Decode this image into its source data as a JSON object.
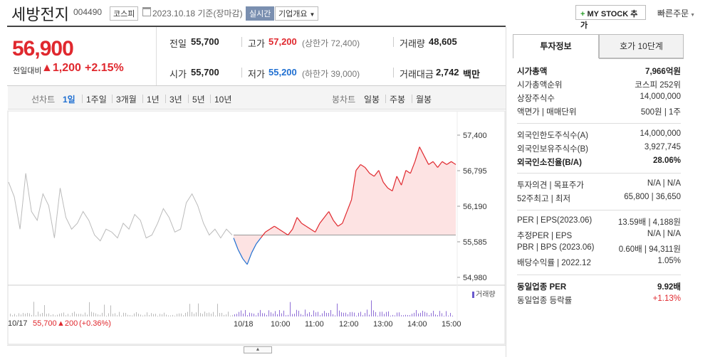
{
  "header": {
    "name": "세방전지",
    "code": "004490",
    "market": "코스피",
    "date": "2023.10.18 기준(장마감)",
    "live": "실시간",
    "company": "기업개요",
    "mystock": "MY STOCK 추가",
    "quick": "빠른주문"
  },
  "price": {
    "current": "56,900",
    "diff_label": "전일대비",
    "diff_value": "1,200",
    "diff_pct": "+2.15%"
  },
  "info": {
    "prev_label": "전일",
    "prev": "55,700",
    "high_label": "고가",
    "high": "57,200",
    "upper": "(상한가 72,400)",
    "volume_label": "거래량",
    "volume": "48,605",
    "open_label": "시가",
    "open": "55,700",
    "low_label": "저가",
    "low": "55,200",
    "lower": "(하한가 39,000)",
    "amount_label": "거래대금",
    "amount": "2,742",
    "amount_unit": "백만"
  },
  "periods": {
    "line_label": "선차트",
    "line_items": [
      "1일",
      "1주일",
      "3개월",
      "1년",
      "3년",
      "5년",
      "10년"
    ],
    "selected": "1일",
    "candle_label": "봉차트",
    "candle_items": [
      "일봉",
      "주봉",
      "월봉"
    ]
  },
  "chart_data": {
    "type": "line",
    "y_ticks": [
      "57,400",
      "56,795",
      "56,190",
      "55,585",
      "54,980"
    ],
    "ylim": [
      54980,
      57400
    ],
    "reference_price": 55700,
    "x_ticks": [
      "10/17",
      "10/18",
      "10:00",
      "11:00",
      "12:00",
      "13:00",
      "14:00",
      "15:00"
    ],
    "prev_day_summary": {
      "date": "10/17",
      "price": "55,700",
      "change": "▲200",
      "pct": "(+0.36%)"
    },
    "volume_legend": "거래량",
    "prev_day_series": [
      56600,
      56350,
      55800,
      56750,
      56100,
      55950,
      56400,
      56200,
      55650,
      56500,
      56000,
      55800,
      55900,
      56100,
      55950,
      55700,
      55600,
      55800,
      55750,
      55650,
      55900,
      55800,
      56050,
      55950,
      55650,
      55700,
      55900,
      56150,
      56000,
      55750,
      55800,
      56250,
      56400,
      56200,
      55900,
      55700,
      55800,
      55650,
      55800,
      55700
    ],
    "today_series": [
      55650,
      55450,
      55300,
      55200,
      55400,
      55550,
      55650,
      55750,
      55800,
      55850,
      55800,
      55750,
      55700,
      55800,
      56000,
      55900,
      55850,
      55800,
      55750,
      55900,
      56000,
      56100,
      55950,
      55850,
      55900,
      56100,
      56300,
      56800,
      56900,
      56850,
      56750,
      56700,
      56800,
      56600,
      56500,
      56450,
      56700,
      56550,
      56800,
      56750,
      56950,
      57200,
      57050,
      56900,
      56950,
      56850,
      56950,
      56900,
      56950,
      56900
    ]
  },
  "right_panel": {
    "tab1": "투자정보",
    "tab2": "호가 10단계",
    "rows1": [
      {
        "label": "시가총액",
        "value": "7,966억원",
        "bold": true
      },
      {
        "label": "시가총액순위",
        "value": "코스피 252위"
      },
      {
        "label": "상장주식수",
        "value": "14,000,000"
      },
      {
        "label": "액면가 | 매매단위",
        "value": "500원 | 1주"
      }
    ],
    "rows2": [
      {
        "label": "외국인한도주식수(A)",
        "value": "14,000,000"
      },
      {
        "label": "외국인보유주식수(B)",
        "value": "3,927,745"
      },
      {
        "label": "외국인소진율(B/A)",
        "value": "28.06%",
        "bold": true
      }
    ],
    "rows3": [
      {
        "label": "투자의견 | 목표주가",
        "value": "N/A | N/A"
      },
      {
        "label": "52주최고 | 최저",
        "value": "65,800 | 36,650"
      }
    ],
    "rows4": [
      {
        "label": "PER | EPS(2023.06)",
        "value": "13.59배 | 4,188원"
      },
      {
        "label": "추정PER | EPS",
        "value": "N/A | N/A"
      },
      {
        "label": "PBR | BPS (2023.06)",
        "value": "0.60배 | 94,311원"
      },
      {
        "label": "배당수익률 | 2022.12",
        "value": "1.05%"
      }
    ],
    "rows5": [
      {
        "label": "동일업종 PER",
        "value": "9.92배",
        "bold": true
      },
      {
        "label": "동일업종 등락률",
        "value": "+1.13%",
        "red": true
      }
    ]
  }
}
